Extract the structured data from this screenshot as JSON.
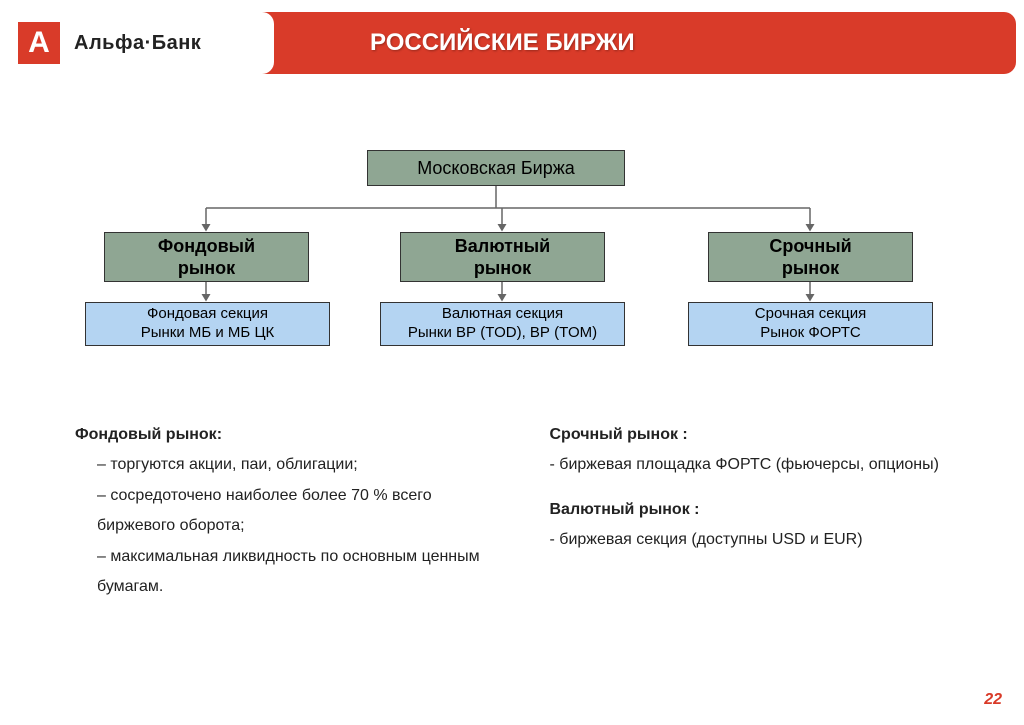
{
  "colors": {
    "header_bg": "#d93b29",
    "green_bg": "#8fa693",
    "blue_bg": "#b4d4f2",
    "text": "#222222",
    "border": "#333333",
    "connector": "#666666"
  },
  "logo": {
    "letter": "А",
    "text": "Альфа·Банк"
  },
  "title": "РОССИЙСКИЕ БИРЖИ",
  "diagram": {
    "type": "tree",
    "root": {
      "label": "Московская Биржа"
    },
    "branches": [
      {
        "green": "Фондовый\nрынок",
        "blue": "Фондовая секция\nРынки МБ и МБ ЦК"
      },
      {
        "green": "Валютный\nрынок",
        "blue": "Валютная секция\nРынки ВР (TOD), ВР (TOM)"
      },
      {
        "green": "Срочный\nрынок",
        "blue": "Срочная секция\nРынок ФОРТС"
      }
    ]
  },
  "descriptions": {
    "left": {
      "title": "Фондовый рынок:",
      "items": [
        "– торгуются акции, паи, облигации;",
        "– сосредоточено наиболее более 70 % всего биржевого оборота;",
        "– максимальная ликвидность по основным ценным бумагам."
      ]
    },
    "right": [
      {
        "title": "Срочный рынок :",
        "items": [
          "- биржевая площадка ФОРТС (фьючерсы, опционы)"
        ]
      },
      {
        "title": "Валютный рынок :",
        "items": [
          "- биржевая секция (доступны USD и EUR)"
        ]
      }
    ]
  },
  "page_number": "22"
}
